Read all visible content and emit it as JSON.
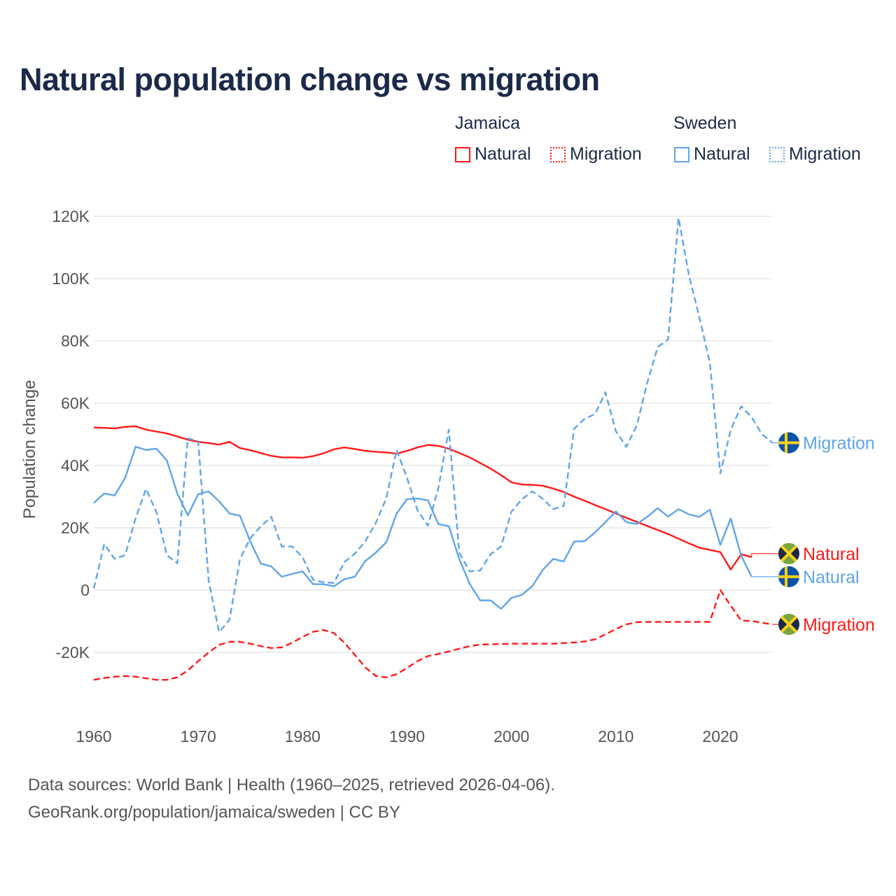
{
  "chart_data": {
    "type": "line",
    "title": "Natural population change vs migration",
    "xlabel": "",
    "ylabel": "Population change",
    "xlim": [
      1960,
      2025
    ],
    "ylim": [
      -30000,
      125000
    ],
    "x_ticks": [
      "1960",
      "1970",
      "1980",
      "1990",
      "2000",
      "2010",
      "2020"
    ],
    "x_tick_values": [
      1960,
      1970,
      1980,
      1990,
      2000,
      2010,
      2020
    ],
    "y_ticks": [
      "-20K",
      "0",
      "20K",
      "40K",
      "60K",
      "80K",
      "100K",
      "120K"
    ],
    "y_tick_values": [
      -20000,
      0,
      20000,
      40000,
      60000,
      80000,
      100000,
      120000
    ],
    "grid": true,
    "legend": {
      "placement": "top-right",
      "groups": [
        {
          "name": "Jamaica",
          "items": [
            "Natural",
            "Migration"
          ]
        },
        {
          "name": "Sweden",
          "items": [
            "Natural",
            "Migration"
          ]
        }
      ]
    },
    "start_year": 1960,
    "series": [
      {
        "name": "Jamaica Natural",
        "country": "Jamaica",
        "kind": "Natural",
        "label": "Natural",
        "color": "#ff1a1a",
        "dashed": false,
        "flag": "jamaica-flag",
        "values": [
          52200,
          52100,
          51900,
          52400,
          52600,
          51500,
          50900,
          50300,
          49300,
          48300,
          47600,
          47200,
          46700,
          47600,
          45600,
          44900,
          44000,
          43100,
          42600,
          42600,
          42500,
          43000,
          43900,
          45200,
          45800,
          45300,
          44700,
          44400,
          44200,
          43800,
          44700,
          45800,
          46600,
          46300,
          45400,
          44000,
          42600,
          40800,
          39000,
          36900,
          34600,
          33900,
          33800,
          33500,
          32600,
          31500,
          30000,
          28700,
          27300,
          26000,
          24600,
          23200,
          21900,
          20600,
          19300,
          18000,
          16500,
          15000,
          13600,
          12900,
          12200,
          6600,
          11500,
          10600
        ]
      },
      {
        "name": "Jamaica Migration",
        "country": "Jamaica",
        "kind": "Migration",
        "label": "Migration",
        "color": "#ff1a1a",
        "dashed": true,
        "flag": "jamaica-flag",
        "values": [
          -28800,
          -28200,
          -27800,
          -27600,
          -27800,
          -28300,
          -28800,
          -28800,
          -28000,
          -25800,
          -22800,
          -20000,
          -17600,
          -16600,
          -16600,
          -17200,
          -18000,
          -18600,
          -18400,
          -16900,
          -15000,
          -13400,
          -12800,
          -13800,
          -16900,
          -20800,
          -24800,
          -27600,
          -28000,
          -27000,
          -25000,
          -22800,
          -21200,
          -20500,
          -19700,
          -18800,
          -18000,
          -17500,
          -17400,
          -17300,
          -17200,
          -17200,
          -17200,
          -17200,
          -17200,
          -17000,
          -16800,
          -16500,
          -15800,
          -14200,
          -12500,
          -11000,
          -10300,
          -10200,
          -10200,
          -10200,
          -10200,
          -10200,
          -10200,
          -10200,
          0,
          -5000,
          -9800,
          -9900,
          -10500,
          -11000
        ]
      },
      {
        "name": "Sweden Natural",
        "country": "Sweden",
        "kind": "Natural",
        "label": "Natural",
        "color": "#5fa5e8",
        "dashed": false,
        "flag": "sweden-flag",
        "values": [
          28000,
          31000,
          30400,
          36000,
          46000,
          45000,
          45400,
          41600,
          31000,
          24000,
          30800,
          31700,
          28500,
          24600,
          23900,
          15500,
          8500,
          7600,
          4300,
          5200,
          6000,
          1900,
          1900,
          1200,
          3500,
          4300,
          9300,
          12000,
          15300,
          24600,
          29200,
          29400,
          28800,
          21200,
          20500,
          10000,
          2000,
          -3300,
          -3300,
          -6000,
          -2500,
          -1500,
          1300,
          6500,
          10000,
          9200,
          15600,
          15700,
          18500,
          21800,
          25300,
          21800,
          21200,
          23500,
          26300,
          23600,
          26000,
          24300,
          23500,
          25800,
          14500,
          23000,
          11000,
          4300
        ]
      },
      {
        "name": "Sweden Migration",
        "country": "Sweden",
        "kind": "Migration",
        "label": "Migration",
        "color": "#5fa5e8",
        "dashed": true,
        "flag": "sweden-flag",
        "values": [
          500,
          14800,
          10000,
          11200,
          23000,
          32500,
          25000,
          11200,
          8600,
          48700,
          47800,
          3000,
          -13500,
          -9500,
          10000,
          16700,
          20500,
          23500,
          14000,
          14000,
          10500,
          3300,
          2500,
          2300,
          9000,
          11700,
          15700,
          21500,
          29400,
          45000,
          36000,
          25600,
          20700,
          32800,
          51500,
          12000,
          6000,
          6300,
          11500,
          14000,
          25200,
          29200,
          31700,
          29300,
          26000,
          27000,
          51800,
          55000,
          56500,
          63500,
          51000,
          46000,
          52800,
          66500,
          78000,
          80500,
          119500,
          101000,
          87500,
          73000,
          37500,
          51500,
          59000,
          55500,
          50000,
          47300
        ]
      }
    ]
  },
  "footer": {
    "line1": "Data sources: World Bank | Health (1960–2025, retrieved 2026-04-06).",
    "line2": "GeoRank.org/population/jamaica/sweden | CC BY"
  }
}
